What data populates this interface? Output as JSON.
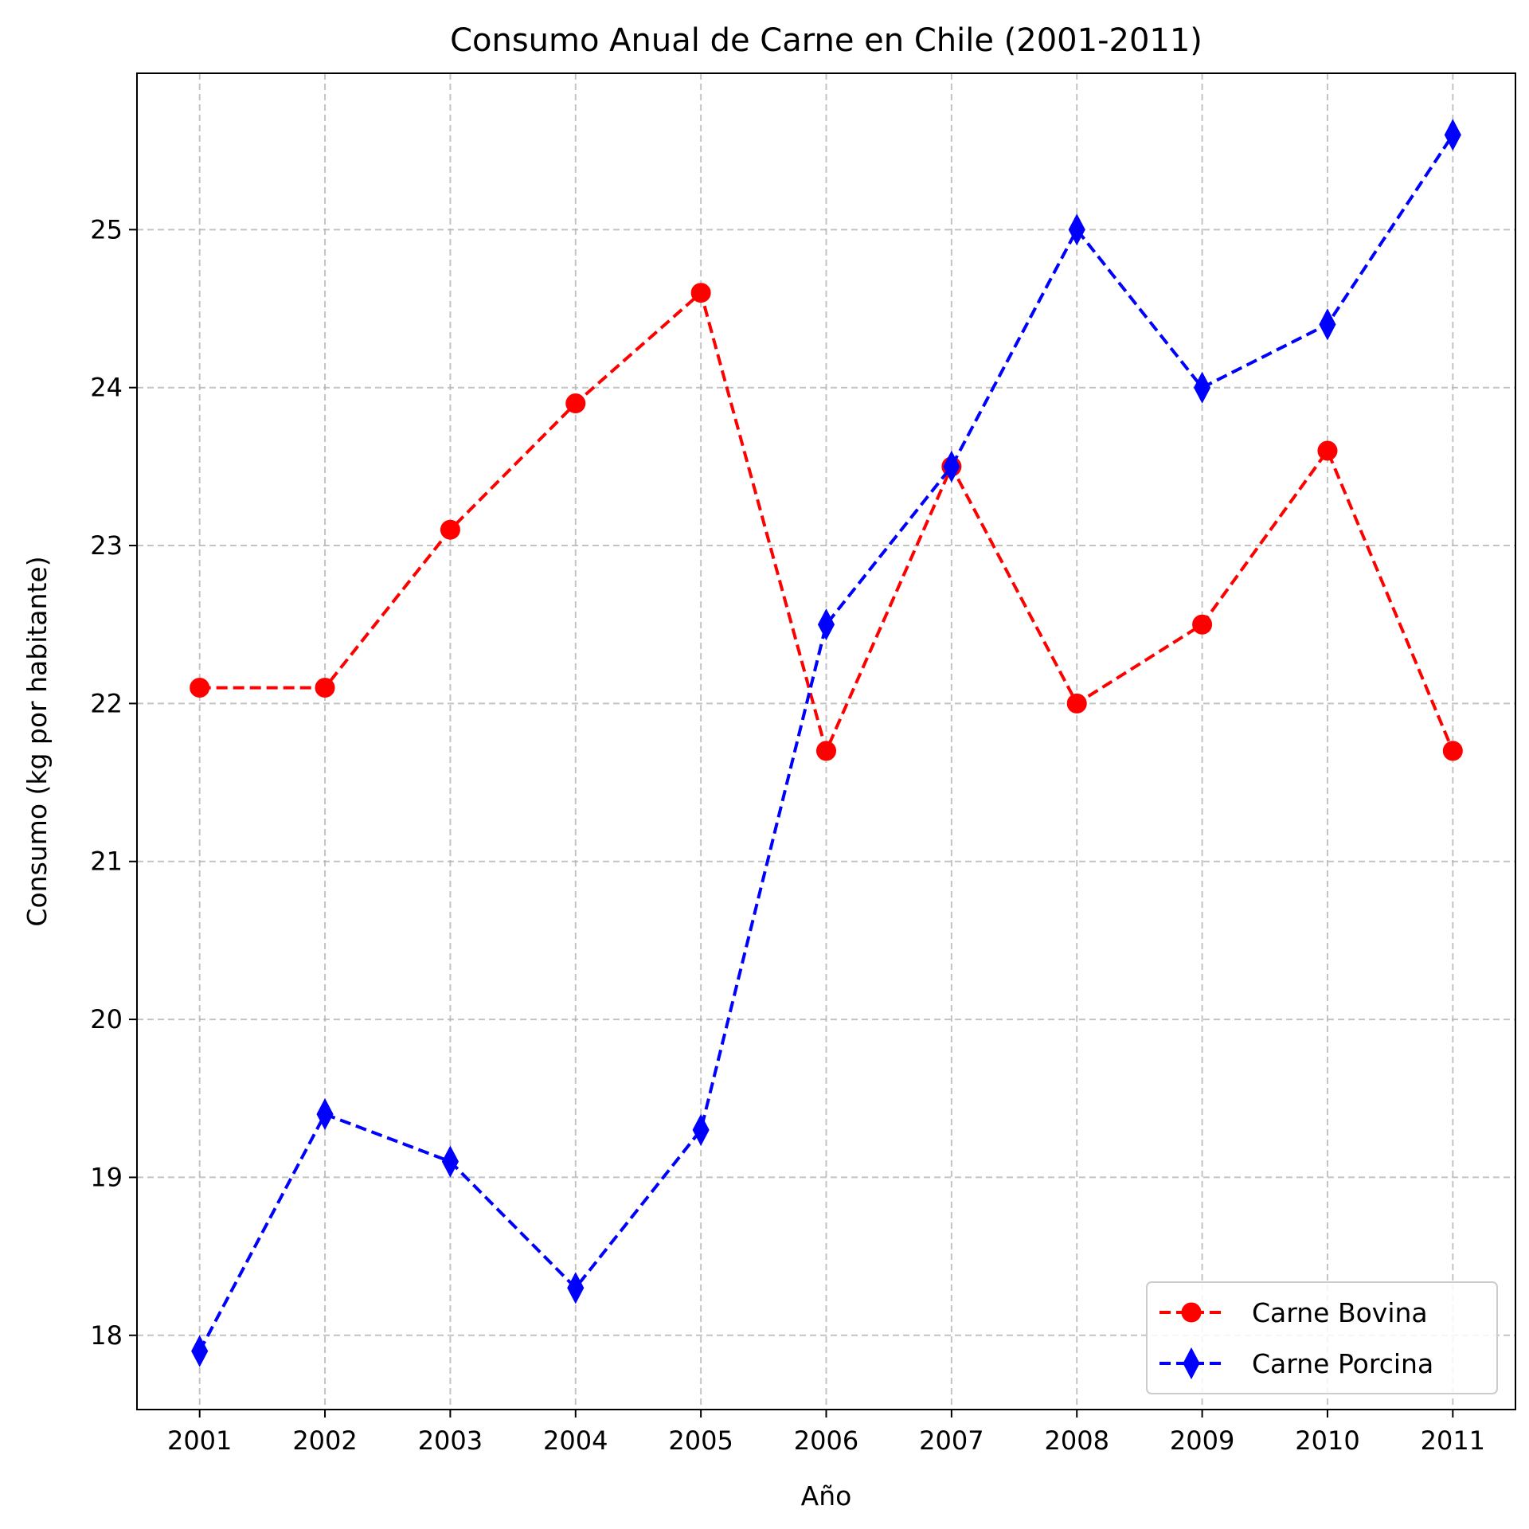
{
  "chart_data": {
    "type": "line",
    "title": "Consumo Anual de Carne en Chile (2001-2011)",
    "xlabel": "Año",
    "ylabel": "Consumo (kg por habitante)",
    "x": [
      2001,
      2002,
      2003,
      2004,
      2005,
      2006,
      2007,
      2008,
      2009,
      2010,
      2011
    ],
    "x_tick_labels": [
      "2001",
      "2002",
      "2003",
      "2004",
      "2005",
      "2006",
      "2007",
      "2008",
      "2009",
      "2010",
      "2011"
    ],
    "y_ticks": [
      18,
      19,
      20,
      21,
      22,
      23,
      24,
      25
    ],
    "y_tick_labels": [
      "18",
      "19",
      "20",
      "21",
      "22",
      "23",
      "24",
      "25"
    ],
    "xlim": [
      2000.5,
      2011.5
    ],
    "ylim": [
      17.53,
      25.99
    ],
    "grid": true,
    "legend_position": "lower-right",
    "series": [
      {
        "name": "Carne Bovina",
        "color": "#ff0000",
        "marker": "circle",
        "line_style": "dashed",
        "values": [
          22.1,
          22.1,
          23.1,
          23.9,
          24.6,
          21.7,
          23.5,
          22.0,
          22.5,
          23.6,
          21.7
        ]
      },
      {
        "name": "Carne Porcina",
        "color": "#0000ff",
        "marker": "thin-diamond",
        "line_style": "dashed",
        "values": [
          17.9,
          19.4,
          19.1,
          18.3,
          19.3,
          22.5,
          23.5,
          25.0,
          24.0,
          24.4,
          25.6
        ]
      }
    ]
  }
}
